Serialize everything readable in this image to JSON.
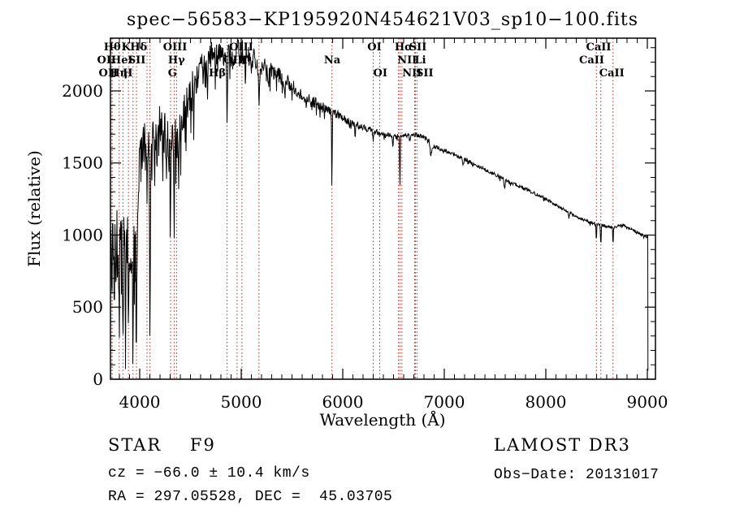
{
  "title": "spec−56583−KP195920N454621V03_sp10−100.fits",
  "annotations": {
    "classification": "STAR    F9",
    "cz": "cz = −66.0 ± 10.4 km/s",
    "radec": "RA = 297.05528, DEC =  45.03705",
    "survey": "LAMOST DR3",
    "obs_date": "Obs−Date: 20131017"
  },
  "colors": {
    "spectrum": "#000000",
    "line_marker": "#a03028",
    "frame": "#000000",
    "background": "#ffffff"
  },
  "spectral_lines": {
    "wavelengths": [
      3726,
      3729,
      3798,
      3835,
      3889,
      3934,
      3968,
      4072,
      4101,
      4304,
      4341,
      4363,
      4861,
      4959,
      5007,
      5175,
      5893,
      6300,
      6364,
      6548,
      6563,
      6583,
      6708,
      6716,
      6731,
      8498,
      8542,
      8662
    ],
    "label_rows": [
      {
        "row": 1,
        "items": [
          {
            "text": "Hθ",
            "lambda": 3730
          },
          {
            "text": "K",
            "lambda": 3866
          },
          {
            "text": "Hδ",
            "lambda": 3990
          },
          {
            "text": "OIII",
            "lambda": 4348
          },
          {
            "text": "OIII",
            "lambda": 5000
          },
          {
            "text": "OI",
            "lambda": 6312
          },
          {
            "text": "Hα",
            "lambda": 6600
          },
          {
            "text": "SII",
            "lambda": 6740
          },
          {
            "text": "CaII",
            "lambda": 8520
          }
        ]
      },
      {
        "row": 2,
        "items": [
          {
            "text": "OII",
            "lambda": 3674
          },
          {
            "text": "HeI",
            "lambda": 3826
          },
          {
            "text": "SII",
            "lambda": 3972
          },
          {
            "text": "Hγ",
            "lambda": 4362
          },
          {
            "text": "OIII",
            "lambda": 4944
          },
          {
            "text": "Na",
            "lambda": 5896
          },
          {
            "text": "NII",
            "lambda": 6634
          },
          {
            "text": "Li",
            "lambda": 6764
          },
          {
            "text": "CaII",
            "lambda": 8452
          }
        ]
      },
      {
        "row": 3,
        "items": [
          {
            "text": "OII",
            "lambda": 3690
          },
          {
            "text": "Hη",
            "lambda": 3794
          },
          {
            "text": "H",
            "lambda": 3882
          },
          {
            "text": "G",
            "lambda": 4322
          },
          {
            "text": "Hβ",
            "lambda": 4764
          },
          {
            "text": "OI",
            "lambda": 6370
          },
          {
            "text": "NII",
            "lambda": 6682
          },
          {
            "text": "SII",
            "lambda": 6806
          },
          {
            "text": "CaII",
            "lambda": 8650
          }
        ]
      }
    ]
  },
  "chart_data": {
    "type": "line",
    "title": "spec−56583−KP195920N454621V03_sp10−100.fits",
    "xlabel": "Wavelength (Å)",
    "ylabel": "Flux (relative)",
    "xlim": [
      3712,
      9080
    ],
    "ylim": [
      0,
      2366
    ],
    "x_ticks": [
      4000,
      5000,
      6000,
      7000,
      8000,
      9000
    ],
    "y_ticks": [
      0,
      500,
      1000,
      1500,
      2000
    ],
    "x_minor_step": 100,
    "y_minor_step": 100,
    "sample_step": 4,
    "noise_seed": 1337,
    "continuum_points": [
      [
        3712,
        950
      ],
      [
        3740,
        1020
      ],
      [
        3780,
        980
      ],
      [
        3820,
        950
      ],
      [
        3860,
        930
      ],
      [
        3900,
        950
      ],
      [
        3940,
        900
      ],
      [
        3970,
        1000
      ],
      [
        4000,
        1480
      ],
      [
        4040,
        1620
      ],
      [
        4090,
        1600
      ],
      [
        4140,
        1680
      ],
      [
        4190,
        1760
      ],
      [
        4240,
        1720
      ],
      [
        4290,
        1640
      ],
      [
        4340,
        1630
      ],
      [
        4390,
        1760
      ],
      [
        4440,
        1860
      ],
      [
        4500,
        1990
      ],
      [
        4560,
        2090
      ],
      [
        4620,
        2170
      ],
      [
        4680,
        2230
      ],
      [
        4740,
        2250
      ],
      [
        4800,
        2240
      ],
      [
        4860,
        2230
      ],
      [
        4920,
        2260
      ],
      [
        4980,
        2290
      ],
      [
        5040,
        2250
      ],
      [
        5100,
        2230
      ],
      [
        5160,
        2190
      ],
      [
        5220,
        2170
      ],
      [
        5290,
        2140
      ],
      [
        5360,
        2110
      ],
      [
        5440,
        2070
      ],
      [
        5520,
        2020
      ],
      [
        5600,
        1970
      ],
      [
        5700,
        1930
      ],
      [
        5800,
        1890
      ],
      [
        5900,
        1855
      ],
      [
        6000,
        1810
      ],
      [
        6100,
        1775
      ],
      [
        6200,
        1750
      ],
      [
        6300,
        1725
      ],
      [
        6400,
        1705
      ],
      [
        6500,
        1690
      ],
      [
        6600,
        1685
      ],
      [
        6700,
        1695
      ],
      [
        6800,
        1685
      ],
      [
        6860,
        1650
      ],
      [
        6880,
        1615
      ],
      [
        6950,
        1605
      ],
      [
        7000,
        1590
      ],
      [
        7100,
        1560
      ],
      [
        7200,
        1525
      ],
      [
        7300,
        1490
      ],
      [
        7400,
        1455
      ],
      [
        7500,
        1420
      ],
      [
        7600,
        1385
      ],
      [
        7700,
        1350
      ],
      [
        7800,
        1320
      ],
      [
        7900,
        1285
      ],
      [
        8000,
        1250
      ],
      [
        8100,
        1210
      ],
      [
        8200,
        1170
      ],
      [
        8300,
        1130
      ],
      [
        8400,
        1098
      ],
      [
        8500,
        1075
      ],
      [
        8600,
        1060
      ],
      [
        8660,
        1052
      ],
      [
        8700,
        1060
      ],
      [
        8760,
        1070
      ],
      [
        8820,
        1050
      ],
      [
        8880,
        1025
      ],
      [
        8940,
        1005
      ],
      [
        9004,
        985
      ]
    ],
    "absorption_features": [
      [
        3726,
        420,
        5
      ],
      [
        3750,
        300,
        6
      ],
      [
        3770,
        250,
        4
      ],
      [
        3798,
        480,
        5
      ],
      [
        3820,
        300,
        4
      ],
      [
        3835,
        560,
        5
      ],
      [
        3860,
        300,
        4
      ],
      [
        3889,
        520,
        5
      ],
      [
        3912,
        250,
        4
      ],
      [
        3934,
        700,
        6
      ],
      [
        3968,
        640,
        6
      ],
      [
        4026,
        200,
        4
      ],
      [
        4072,
        300,
        4
      ],
      [
        4101,
        1250,
        5
      ],
      [
        4144,
        300,
        4
      ],
      [
        4172,
        350,
        4
      ],
      [
        4227,
        400,
        4
      ],
      [
        4260,
        250,
        4
      ],
      [
        4304,
        480,
        6
      ],
      [
        4340,
        520,
        5
      ],
      [
        4383,
        350,
        4
      ],
      [
        4405,
        250,
        4
      ],
      [
        4455,
        200,
        4
      ],
      [
        4531,
        250,
        4
      ],
      [
        4668,
        200,
        4
      ],
      [
        4861,
        480,
        5
      ],
      [
        4921,
        150,
        4
      ],
      [
        5041,
        150,
        4
      ],
      [
        5175,
        280,
        7
      ],
      [
        5269,
        150,
        5
      ],
      [
        5430,
        100,
        4
      ],
      [
        5893,
        520,
        4
      ],
      [
        6122,
        80,
        4
      ],
      [
        6300,
        60,
        4
      ],
      [
        6494,
        80,
        5
      ],
      [
        6563,
        370,
        4
      ],
      [
        6867,
        80,
        10
      ],
      [
        7186,
        40,
        8
      ],
      [
        7594,
        60,
        8
      ],
      [
        8227,
        40,
        5
      ],
      [
        8498,
        120,
        4
      ],
      [
        8542,
        145,
        4
      ],
      [
        8662,
        125,
        4
      ]
    ],
    "noise_profile": [
      [
        3712,
        300
      ],
      [
        3800,
        300
      ],
      [
        3900,
        260
      ],
      [
        3990,
        200
      ],
      [
        4010,
        170
      ],
      [
        4150,
        160
      ],
      [
        4300,
        150
      ],
      [
        4450,
        130
      ],
      [
        4600,
        110
      ],
      [
        4800,
        90
      ],
      [
        5000,
        85
      ],
      [
        5200,
        70
      ],
      [
        5400,
        55
      ],
      [
        5600,
        45
      ],
      [
        5800,
        35
      ],
      [
        6000,
        28
      ],
      [
        6200,
        24
      ],
      [
        6500,
        18
      ],
      [
        6800,
        15
      ],
      [
        7200,
        13
      ],
      [
        7600,
        12
      ],
      [
        8000,
        11
      ],
      [
        8400,
        10
      ],
      [
        8800,
        9
      ],
      [
        9004,
        12
      ]
    ],
    "cutoff": {
      "wavelength": 9004,
      "floor_flux": 60
    },
    "legend": null,
    "grid": false
  }
}
